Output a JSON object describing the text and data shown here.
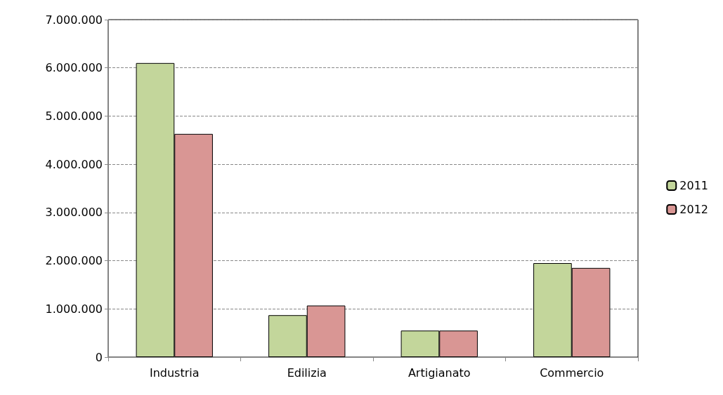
{
  "chart_data": {
    "type": "bar",
    "categories": [
      "Industria",
      "Edilizia",
      "Artigianato",
      "Commercio"
    ],
    "series": [
      {
        "name": "2011",
        "color": "#c3d69b",
        "values": [
          6100000,
          870000,
          550000,
          1950000
        ]
      },
      {
        "name": "2012",
        "color": "#d99694",
        "values": [
          4630000,
          1070000,
          550000,
          1850000
        ]
      }
    ],
    "ylim": [
      0,
      7000000
    ],
    "yticks": [
      0,
      {
        "value": 1000000,
        "label": "1.000.000"
      },
      {
        "value": 2000000,
        "label": "2.000.000"
      },
      {
        "value": 3000000,
        "label": "3.000.000"
      },
      {
        "value": 4000000,
        "label": "4.000.000"
      },
      {
        "value": 5000000,
        "label": "5.000.000"
      },
      {
        "value": 6000000,
        "label": "6.000.000"
      },
      {
        "value": 7000000,
        "label": "7.000.000"
      }
    ],
    "grid": "y",
    "legend": "right"
  }
}
